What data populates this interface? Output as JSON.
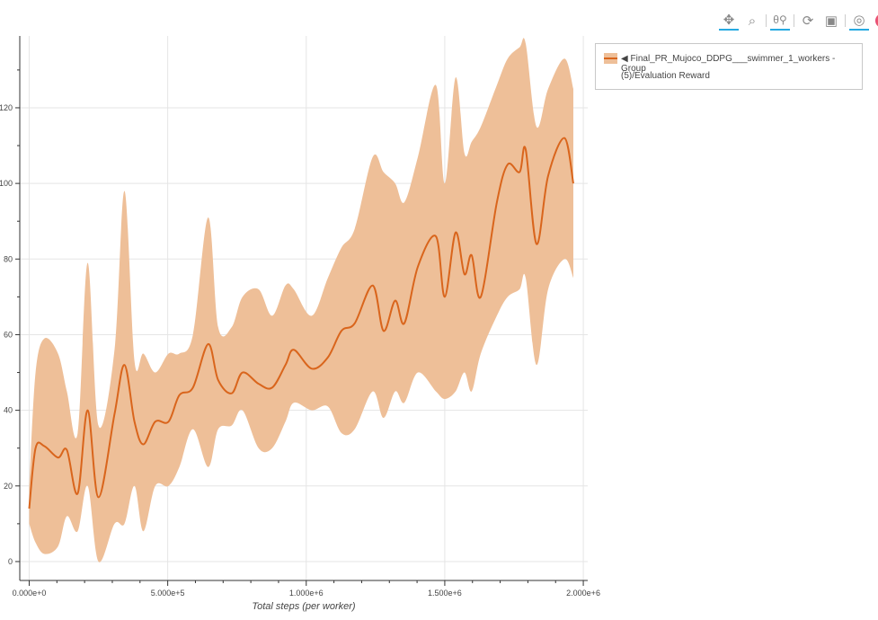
{
  "toolbar": {
    "tools": [
      {
        "name": "pan",
        "icon": "move-icon",
        "active": true
      },
      {
        "name": "box-zoom",
        "icon": "box-zoom-icon",
        "active": false
      },
      {
        "name": "wheel-zoom",
        "icon": "wheel-zoom-icon",
        "active": true
      },
      {
        "name": "reset",
        "icon": "reset-icon",
        "active": false
      },
      {
        "name": "save",
        "icon": "save-icon",
        "active": false
      },
      {
        "name": "crosshair",
        "icon": "crosshair-icon",
        "active": true
      },
      {
        "name": "bokeh",
        "icon": "bokeh-logo-icon",
        "active": false
      }
    ]
  },
  "legend": {
    "arrow": "◀",
    "line1": "Final_PR_Mujoco_DDPG___swimmer_1_workers - Group",
    "line2": "(5)/Evaluation Reward"
  },
  "chart_data": {
    "type": "line",
    "title": "",
    "xlabel": "Total steps (per worker)",
    "ylabel": "",
    "xlim": [
      -34000,
      2016000
    ],
    "ylim": [
      -5,
      139
    ],
    "grid": true,
    "legend_position": "right-outside",
    "xticks": [
      0,
      500000,
      1000000,
      1500000,
      2000000
    ],
    "xtick_labels": [
      "0.000e+0",
      "5.000e+5",
      "1.000e+6",
      "1.500e+6",
      "2.000e+6"
    ],
    "yticks": [
      0,
      20,
      40,
      60,
      80,
      100,
      120
    ],
    "ytick_labels": [
      "0",
      "20",
      "40",
      "60",
      "80",
      "100",
      "120"
    ],
    "colors": {
      "line": "#d9651c",
      "band": "#eebf98"
    },
    "series": [
      {
        "name": "Final_PR_Mujoco_DDPG___swimmer_1_workers - Group (5)/Evaluation Reward",
        "x": [
          0,
          23000,
          55000,
          104000,
          136000,
          175000,
          211000,
          250000,
          308000,
          344000,
          380000,
          412000,
          455000,
          503000,
          542000,
          591000,
          646000,
          682000,
          731000,
          770000,
          828000,
          877000,
          925000,
          955000,
          1020000,
          1078000,
          1127000,
          1175000,
          1240000,
          1279000,
          1321000,
          1354000,
          1403000,
          1468000,
          1500000,
          1539000,
          1571000,
          1597000,
          1630000,
          1688000,
          1727000,
          1770000,
          1792000,
          1831000,
          1873000,
          1932000,
          1964000
        ],
        "mean": [
          14,
          30,
          30.5,
          27.5,
          29.5,
          18,
          40,
          17,
          39,
          52,
          37,
          31,
          37,
          37,
          44,
          46,
          57.5,
          48,
          44.5,
          50,
          47,
          46,
          52,
          56,
          51,
          54,
          61,
          63,
          73,
          61,
          69,
          63,
          78,
          86,
          70,
          87,
          76,
          81,
          70,
          95,
          105,
          103,
          109,
          84,
          102,
          112,
          100
        ],
        "upper": [
          20,
          50,
          59,
          55,
          45,
          34,
          79,
          36,
          56,
          98,
          53,
          55,
          50,
          55,
          55,
          60,
          91,
          62,
          62,
          70,
          72,
          65,
          73,
          72,
          65,
          75,
          83,
          88,
          107,
          103,
          100,
          95,
          107,
          126,
          100,
          128,
          108,
          111,
          115,
          126,
          133,
          136,
          137,
          115,
          125,
          133,
          125
        ],
        "lower": [
          10,
          5,
          2,
          4,
          12,
          8,
          20,
          0,
          10,
          10,
          20,
          8,
          20,
          20,
          25,
          35,
          25,
          35,
          36,
          40,
          30,
          30,
          37,
          42,
          40,
          41,
          34,
          35,
          45,
          38,
          45,
          42,
          50,
          45,
          43,
          45,
          50,
          45,
          55,
          65,
          70,
          72,
          75,
          52,
          72,
          80,
          75
        ]
      }
    ]
  }
}
